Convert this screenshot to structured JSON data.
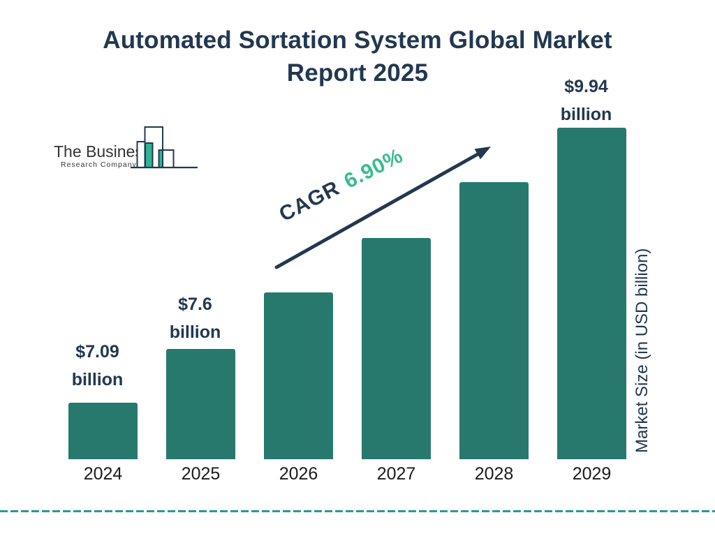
{
  "header": {
    "title_line1": "Automated Sortation System Global Market",
    "title_line2": "Report 2025"
  },
  "logo": {
    "name_line1": "The Business",
    "name_line2": "Research Company"
  },
  "annotation": {
    "cagr_label": "CAGR",
    "cagr_value": "6.90%"
  },
  "axis": {
    "y_label": "Market Size (in USD billion)"
  },
  "chart_data": {
    "type": "bar",
    "title": "Automated Sortation System Global Market Report 2025",
    "categories": [
      "2024",
      "2025",
      "2026",
      "2027",
      "2028",
      "2029"
    ],
    "values": [
      7.09,
      7.6,
      8.12,
      8.69,
      9.29,
      9.94
    ],
    "values_estimated": [
      false,
      false,
      true,
      true,
      true,
      false
    ],
    "unit": "USD billion",
    "bar_labels": [
      {
        "index": 0,
        "line1": "$7.09",
        "line2": "billion"
      },
      {
        "index": 1,
        "line1": "$7.6",
        "line2": "billion"
      },
      {
        "index": 5,
        "line1": "$9.94",
        "line2": "billion"
      }
    ],
    "cagr": "6.90%",
    "xlabel": "",
    "ylabel": "Market Size (in USD billion)",
    "legend": "none",
    "grid": false,
    "colors": {
      "bar": "#26796c",
      "navy": "#223850",
      "green": "#3abb8e",
      "dashed_line": "#2a9a8c",
      "logo_teal": "#2db596"
    }
  }
}
